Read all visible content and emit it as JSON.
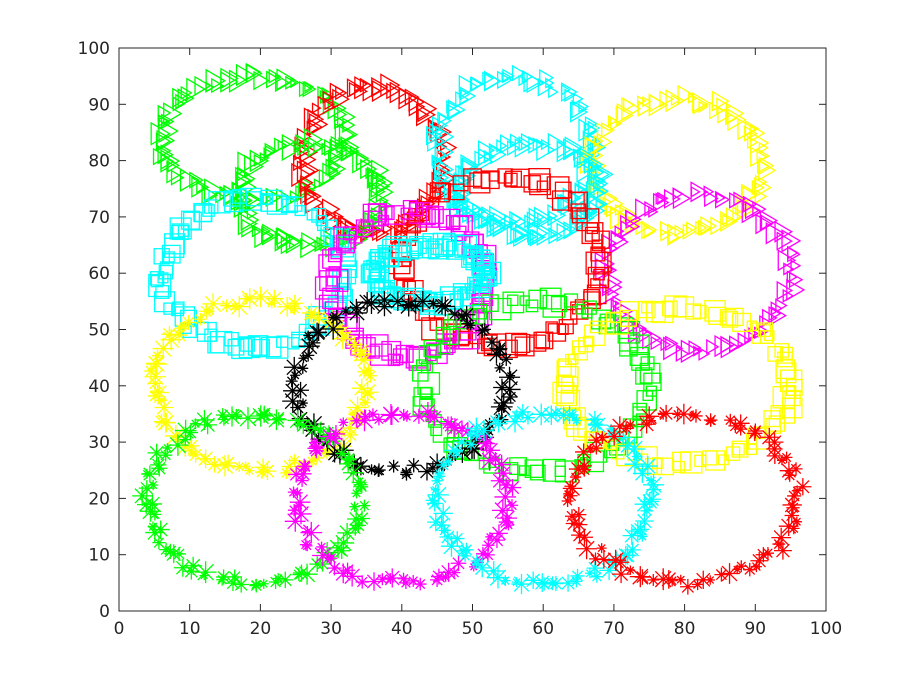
{
  "chart_data": {
    "type": "scatter",
    "title": "",
    "xlabel": "",
    "ylabel": "",
    "xlim": [
      0,
      100
    ],
    "ylim": [
      0,
      100
    ],
    "xticks": [
      "0",
      "10",
      "20",
      "30",
      "40",
      "50",
      "60",
      "70",
      "80",
      "90",
      "100"
    ],
    "yticks": [
      "0",
      "10",
      "20",
      "30",
      "40",
      "50",
      "60",
      "70",
      "80",
      "90",
      "100"
    ],
    "grid": false,
    "box": true,
    "series": [
      {
        "color": "#00ff00",
        "marker": "triangle-right",
        "shape": "ellipse",
        "cx": 19,
        "cy": 84,
        "rx": 13,
        "ry": 11
      },
      {
        "color": "#ff0000",
        "marker": "triangle-right",
        "shape": "ellipse",
        "cx": 36,
        "cy": 80,
        "rx": 10,
        "ry": 13
      },
      {
        "color": "#00ffff",
        "marker": "triangle-right",
        "shape": "ellipse",
        "cx": 56,
        "cy": 82,
        "rx": 11,
        "ry": 13
      },
      {
        "color": "#ffff00",
        "marker": "triangle-right",
        "shape": "ellipse",
        "cx": 79,
        "cy": 79,
        "rx": 12,
        "ry": 12
      },
      {
        "color": "#00ff00",
        "marker": "triangle-right",
        "shape": "ellipse",
        "cx": 27,
        "cy": 74,
        "rx": 10,
        "ry": 9
      },
      {
        "color": "#00ffff",
        "marker": "triangle-right",
        "shape": "ellipse",
        "cx": 58,
        "cy": 75,
        "rx": 10,
        "ry": 8
      },
      {
        "color": "#ff00ff",
        "marker": "triangle-right",
        "shape": "ellipse",
        "cx": 82,
        "cy": 60,
        "rx": 13,
        "ry": 14
      },
      {
        "color": "#ff0000",
        "marker": "square",
        "shape": "ellipse",
        "cx": 54,
        "cy": 62,
        "rx": 14,
        "ry": 15
      },
      {
        "color": "#00ffff",
        "marker": "square",
        "shape": "ellipse",
        "cx": 19,
        "cy": 60,
        "rx": 13,
        "ry": 13
      },
      {
        "color": "#ff00ff",
        "marker": "square",
        "shape": "ellipse",
        "cx": 41,
        "cy": 58,
        "rx": 11,
        "ry": 13
      },
      {
        "color": "#00ffff",
        "marker": "square",
        "shape": "ellipse",
        "cx": 44,
        "cy": 60,
        "rx": 8,
        "ry": 5
      },
      {
        "color": "#00ff00",
        "marker": "square",
        "shape": "ellipse",
        "cx": 59,
        "cy": 40,
        "rx": 16,
        "ry": 15
      },
      {
        "color": "#ffff00",
        "marker": "square",
        "shape": "ellipse",
        "cx": 79,
        "cy": 40,
        "rx": 16,
        "ry": 14
      },
      {
        "color": "#ffff00",
        "marker": "asterisk",
        "shape": "ellipse",
        "cx": 20,
        "cy": 40,
        "rx": 15,
        "ry": 15
      },
      {
        "color": "#000000",
        "marker": "asterisk",
        "shape": "ellipse",
        "cx": 40,
        "cy": 40,
        "rx": 15,
        "ry": 15
      },
      {
        "color": "#00ff00",
        "marker": "asterisk",
        "shape": "ellipse",
        "cx": 19,
        "cy": 20,
        "rx": 15,
        "ry": 15
      },
      {
        "color": "#ff00ff",
        "marker": "asterisk",
        "shape": "ellipse",
        "cx": 40,
        "cy": 20,
        "rx": 15,
        "ry": 15
      },
      {
        "color": "#00ffff",
        "marker": "asterisk",
        "shape": "ellipse",
        "cx": 60,
        "cy": 20,
        "rx": 15,
        "ry": 15
      },
      {
        "color": "#ff0000",
        "marker": "asterisk",
        "shape": "ellipse",
        "cx": 80,
        "cy": 20,
        "rx": 16,
        "ry": 15
      }
    ]
  }
}
